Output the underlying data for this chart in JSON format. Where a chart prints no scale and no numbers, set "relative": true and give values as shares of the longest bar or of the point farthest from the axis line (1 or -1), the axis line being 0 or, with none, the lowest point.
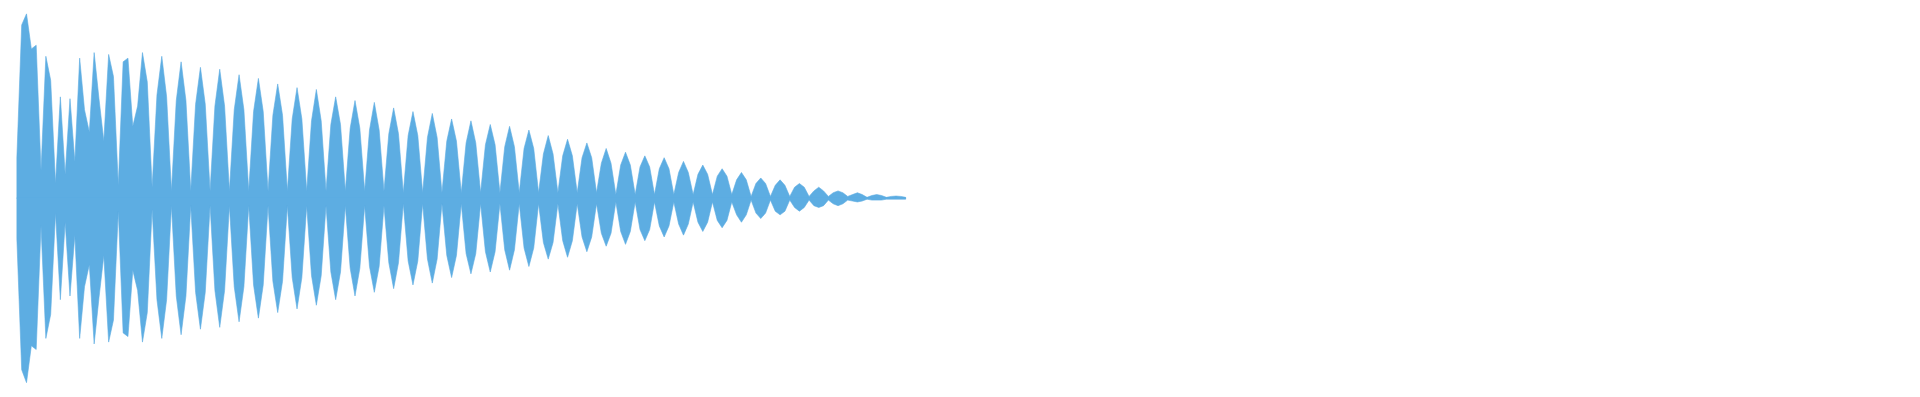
{
  "chart_data": {
    "type": "area",
    "relative": true,
    "categories": [
      null,
      null,
      null,
      null,
      null,
      null,
      null,
      null,
      null,
      null,
      null,
      null,
      null,
      null,
      null,
      null,
      null,
      null,
      null,
      null,
      null,
      null,
      null,
      null,
      null,
      null,
      null,
      null,
      null,
      null,
      null,
      null,
      null,
      null,
      null,
      null,
      null,
      null,
      null,
      null,
      null,
      null,
      null,
      null,
      null,
      null,
      null,
      null,
      null,
      null,
      null,
      null,
      null,
      null,
      null,
      null,
      null,
      null,
      null,
      null,
      null,
      null,
      null,
      null,
      null,
      null,
      null,
      null,
      null,
      null,
      null,
      null,
      null,
      null,
      null,
      null,
      null,
      null,
      null,
      null,
      null,
      null,
      null,
      null,
      null,
      null,
      null,
      null,
      null,
      null,
      null,
      null,
      null,
      null,
      null,
      null,
      null,
      null,
      null,
      null,
      null,
      null,
      null,
      null,
      null,
      null,
      null,
      null,
      null,
      null,
      null,
      null,
      null,
      null,
      null,
      null,
      null,
      null,
      null,
      null,
      null,
      null,
      null,
      null,
      null,
      null,
      null,
      null,
      null,
      null,
      null,
      null,
      null,
      null,
      null,
      null,
      null,
      null,
      null,
      null,
      null,
      null,
      null,
      null,
      null,
      null,
      null,
      null,
      null,
      null,
      null,
      null,
      null,
      null,
      null,
      null,
      null,
      null,
      null,
      null,
      null,
      null,
      null,
      null,
      null,
      null,
      null,
      null,
      null,
      null,
      null,
      null,
      null,
      null,
      null,
      null,
      null,
      null,
      null,
      null,
      null,
      null,
      null,
      null,
      null
    ],
    "series": [
      {
        "color": "#5dade2",
        "values": [
          0.22,
          0.94,
          1.0,
          0.81,
          0.83,
          0.15,
          0.77,
          0.64,
          0.08,
          0.55,
          0.13,
          0.54,
          0.2,
          0.76,
          0.48,
          0.36,
          0.79,
          0.54,
          0.31,
          0.78,
          0.66,
          0.07,
          0.74,
          0.76,
          0.39,
          0.5,
          0.79,
          0.63,
          0.06,
          0.56,
          0.77,
          0.55,
          0.04,
          0.53,
          0.74,
          0.53,
          0.04,
          0.51,
          0.71,
          0.51,
          0.04,
          0.5,
          0.7,
          0.5,
          0.04,
          0.48,
          0.67,
          0.48,
          0.04,
          0.47,
          0.65,
          0.47,
          0.04,
          0.45,
          0.62,
          0.45,
          0.04,
          0.43,
          0.6,
          0.43,
          0.04,
          0.42,
          0.59,
          0.42,
          0.04,
          0.4,
          0.55,
          0.4,
          0.04,
          0.38,
          0.53,
          0.38,
          0.04,
          0.37,
          0.52,
          0.37,
          0.04,
          0.35,
          0.49,
          0.35,
          0.03,
          0.34,
          0.47,
          0.34,
          0.03,
          0.33,
          0.46,
          0.33,
          0.03,
          0.31,
          0.43,
          0.31,
          0.03,
          0.3,
          0.42,
          0.3,
          0.03,
          0.29,
          0.4,
          0.29,
          0.03,
          0.28,
          0.39,
          0.28,
          0.03,
          0.27,
          0.37,
          0.27,
          0.03,
          0.24,
          0.34,
          0.24,
          0.03,
          0.23,
          0.32,
          0.23,
          0.03,
          0.22,
          0.3,
          0.22,
          0.03,
          0.19,
          0.27,
          0.19,
          0.02,
          0.18,
          0.25,
          0.18,
          0.02,
          0.17,
          0.23,
          0.17,
          0.02,
          0.16,
          0.22,
          0.16,
          0.02,
          0.14,
          0.2,
          0.14,
          0.02,
          0.13,
          0.18,
          0.13,
          0.02,
          0.12,
          0.16,
          0.12,
          0.02,
          0.1,
          0.14,
          0.1,
          0.01,
          0.08,
          0.11,
          0.08,
          0.01,
          0.07,
          0.1,
          0.07,
          0.01,
          0.06,
          0.08,
          0.06,
          0.01,
          0.04,
          0.06,
          0.04,
          0.01,
          0.03,
          0.04,
          0.03,
          0.01,
          0.02,
          0.03,
          0.02,
          0.005,
          0.015,
          0.02,
          0.015,
          0.005,
          0.01,
          0.012,
          0.01,
          0.005
        ]
      },
      {
        "color": "#5dade2",
        "values": [
          -0.22,
          -0.93,
          -1.0,
          -0.8,
          -0.82,
          -0.15,
          -0.76,
          -0.63,
          -0.08,
          -0.55,
          -0.13,
          -0.53,
          -0.2,
          -0.76,
          -0.48,
          -0.36,
          -0.79,
          -0.54,
          -0.31,
          -0.78,
          -0.66,
          -0.07,
          -0.73,
          -0.75,
          -0.39,
          -0.5,
          -0.78,
          -0.62,
          -0.06,
          -0.55,
          -0.76,
          -0.55,
          -0.04,
          -0.53,
          -0.74,
          -0.53,
          -0.04,
          -0.51,
          -0.71,
          -0.51,
          -0.04,
          -0.5,
          -0.7,
          -0.5,
          -0.04,
          -0.48,
          -0.67,
          -0.48,
          -0.04,
          -0.47,
          -0.65,
          -0.47,
          -0.04,
          -0.45,
          -0.62,
          -0.45,
          -0.04,
          -0.43,
          -0.6,
          -0.43,
          -0.04,
          -0.42,
          -0.58,
          -0.42,
          -0.04,
          -0.4,
          -0.55,
          -0.4,
          -0.04,
          -0.38,
          -0.53,
          -0.38,
          -0.04,
          -0.37,
          -0.51,
          -0.37,
          -0.04,
          -0.35,
          -0.49,
          -0.35,
          -0.03,
          -0.34,
          -0.47,
          -0.34,
          -0.03,
          -0.33,
          -0.46,
          -0.33,
          -0.03,
          -0.31,
          -0.43,
          -0.31,
          -0.03,
          -0.3,
          -0.41,
          -0.3,
          -0.03,
          -0.29,
          -0.4,
          -0.29,
          -0.03,
          -0.28,
          -0.39,
          -0.28,
          -0.03,
          -0.27,
          -0.37,
          -0.27,
          -0.03,
          -0.24,
          -0.33,
          -0.24,
          -0.03,
          -0.23,
          -0.32,
          -0.23,
          -0.03,
          -0.21,
          -0.29,
          -0.21,
          -0.03,
          -0.19,
          -0.26,
          -0.19,
          -0.02,
          -0.18,
          -0.25,
          -0.18,
          -0.02,
          -0.17,
          -0.23,
          -0.17,
          -0.02,
          -0.15,
          -0.21,
          -0.15,
          -0.02,
          -0.14,
          -0.2,
          -0.14,
          -0.02,
          -0.13,
          -0.18,
          -0.13,
          -0.02,
          -0.12,
          -0.16,
          -0.12,
          -0.02,
          -0.09,
          -0.13,
          -0.09,
          -0.01,
          -0.08,
          -0.11,
          -0.08,
          -0.01,
          -0.07,
          -0.09,
          -0.07,
          -0.01,
          -0.05,
          -0.07,
          -0.05,
          -0.01,
          -0.04,
          -0.05,
          -0.04,
          -0.01,
          -0.03,
          -0.04,
          -0.03,
          -0.01,
          -0.015,
          -0.02,
          -0.015,
          -0.005,
          -0.01,
          -0.01,
          -0.01,
          -0.005,
          -0.005,
          -0.005,
          -0.005,
          -0.005
        ]
      }
    ],
    "ref_lines": [
      {
        "axis": "y",
        "value": 0,
        "color": "#5dade2"
      }
    ]
  }
}
